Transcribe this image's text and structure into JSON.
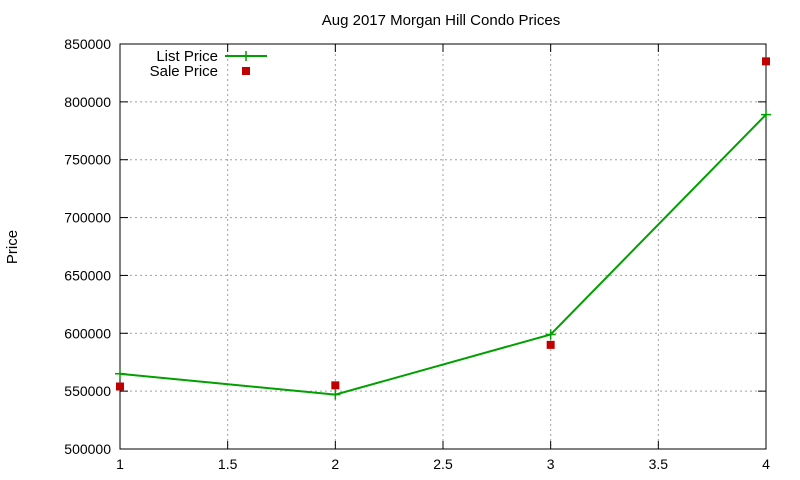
{
  "chart_data": {
    "type": "line",
    "title": "Aug 2017 Morgan Hill Condo Prices",
    "xlabel": "",
    "ylabel": "Price",
    "xlim": [
      1,
      4
    ],
    "ylim": [
      500000,
      850000
    ],
    "x_ticks": [
      1,
      1.5,
      2,
      2.5,
      3,
      3.5,
      4
    ],
    "x_tick_labels": [
      "1",
      "1.5",
      "2",
      "2.5",
      "3",
      "3.5",
      "4"
    ],
    "y_ticks": [
      500000,
      550000,
      600000,
      650000,
      700000,
      750000,
      800000,
      850000
    ],
    "y_tick_labels": [
      "500000",
      "550000",
      "600000",
      "650000",
      "700000",
      "750000",
      "800000",
      "850000"
    ],
    "grid": true,
    "legend_position": "top-left",
    "series": [
      {
        "name": "List Price",
        "style": "line-with-plus-markers",
        "color": "#00a000",
        "x": [
          1,
          2,
          3,
          4
        ],
        "values": [
          565000,
          547000,
          599000,
          789000
        ]
      },
      {
        "name": "Sale Price",
        "style": "square-markers",
        "color": "#c00000",
        "x": [
          1,
          2,
          3,
          4
        ],
        "values": [
          554000,
          555000,
          590000,
          835000
        ]
      }
    ]
  }
}
